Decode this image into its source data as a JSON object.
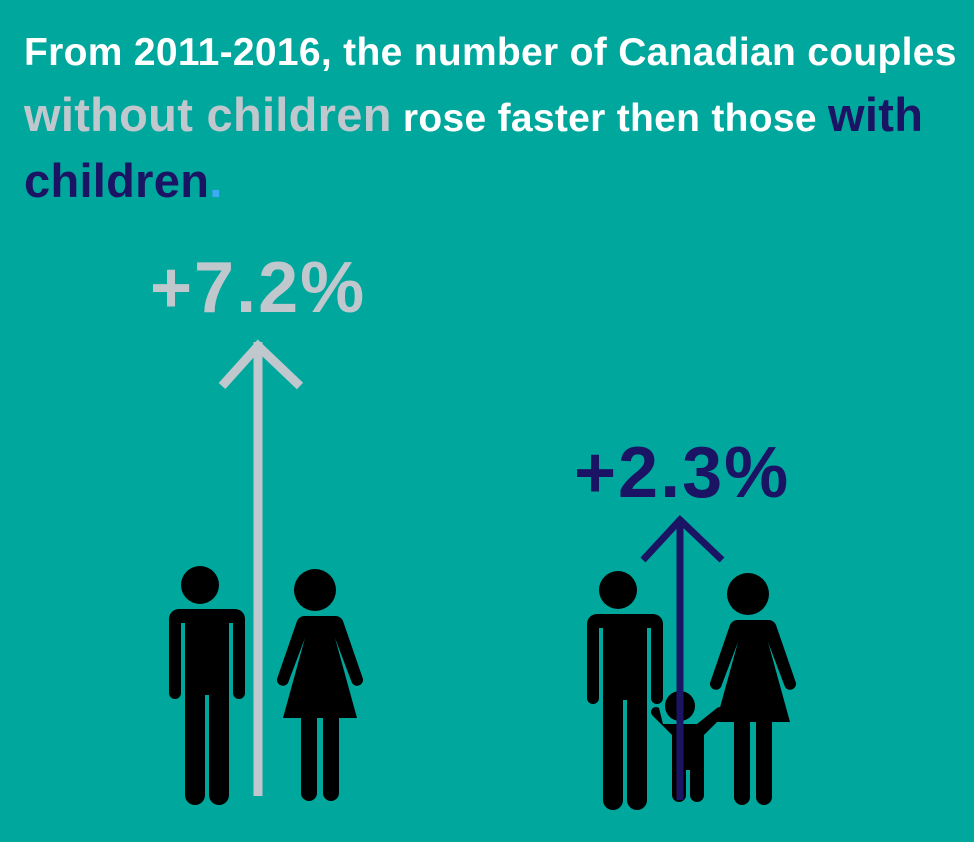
{
  "title": {
    "part1": "From 2011-2016, the number of Canadian couples ",
    "highlight1": "without children",
    "part2": " rose faster then those ",
    "highlight2": "with children",
    "end": "."
  },
  "stats": {
    "without_children": "+7.2%",
    "with_children": "+2.3%"
  },
  "colors": {
    "background": "#00A79D",
    "without_children": "#C0C8CE",
    "with_children": "#1B1464",
    "figures": "#000000"
  },
  "icons": [
    "man-icon",
    "woman-icon",
    "child-icon",
    "up-arrow-icon"
  ]
}
